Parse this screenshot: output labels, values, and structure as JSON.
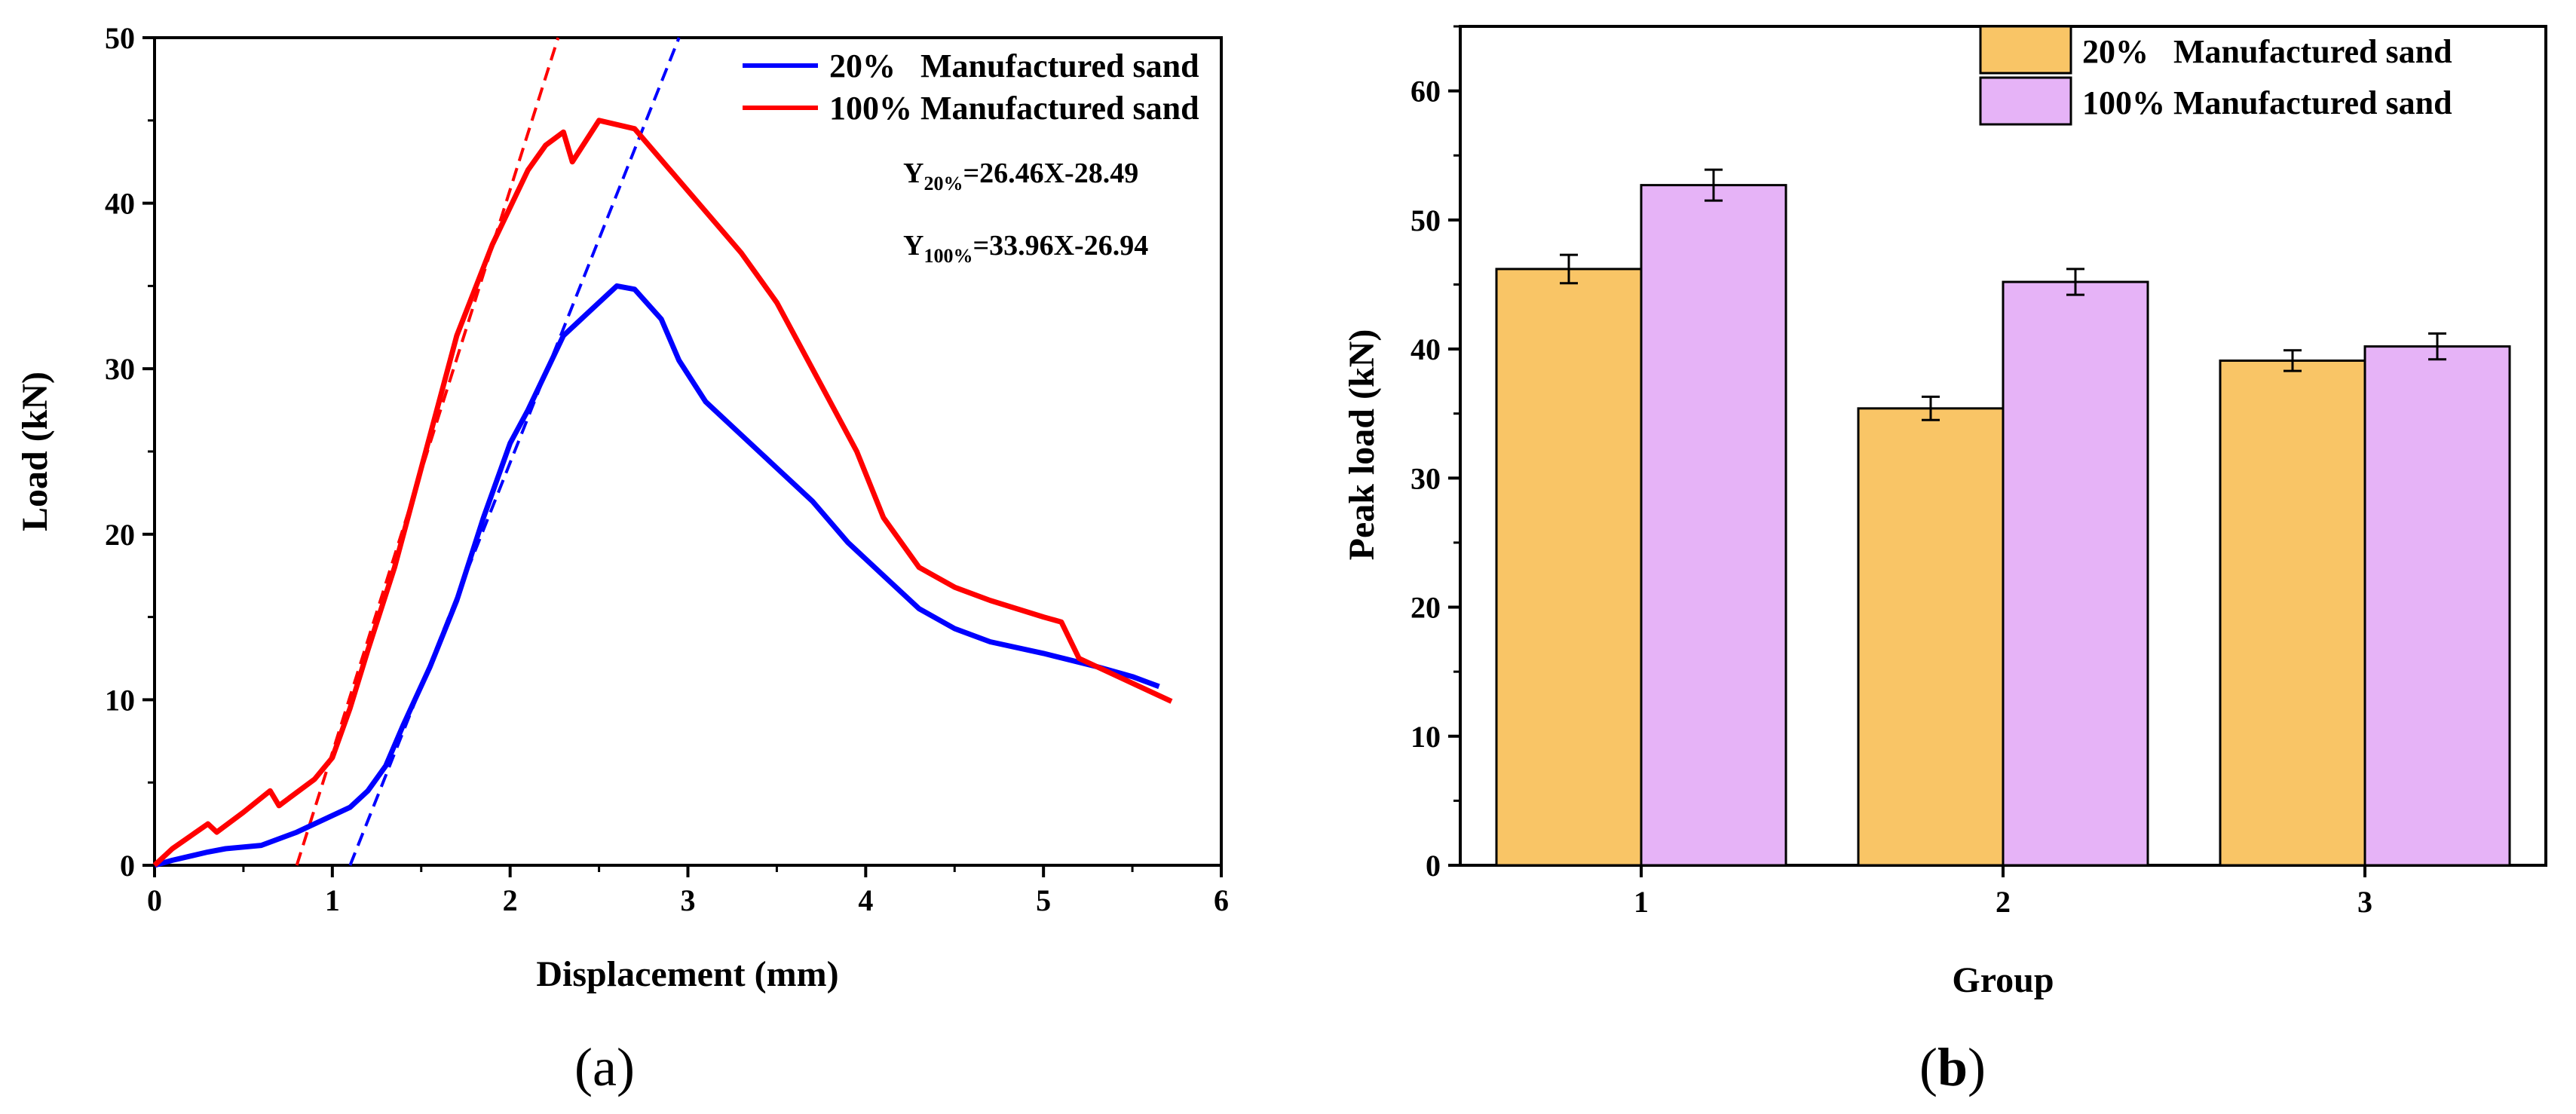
{
  "colors": {
    "blue": "#0000ff",
    "red": "#ff0000",
    "bar20": "#f9c566",
    "bar100": "#e6b3f7"
  },
  "panel_labels": {
    "a": "a",
    "b": "b"
  },
  "chart_data": [
    {
      "id": "a",
      "type": "line",
      "xlabel": "Displacement (mm)",
      "ylabel": "Load (kN)",
      "xlim": [
        0,
        6
      ],
      "ylim": [
        0,
        50
      ],
      "xticks": [
        "0",
        "1",
        "2",
        "3",
        "4",
        "5",
        "6"
      ],
      "yticks": [
        "0",
        "10",
        "20",
        "30",
        "40",
        "50"
      ],
      "legend": [
        "20%   Manufactured sand",
        "100% Manufactured sand"
      ],
      "equations": [
        {
          "base": "Y",
          "sub": "20%",
          "rest": "=26.46X-28.49"
        },
        {
          "base": "Y",
          "sub": "100%",
          "rest": "=33.96X-26.94"
        }
      ],
      "series": [
        {
          "name": "20%   Manufactured sand",
          "color": "#0000ff",
          "x": [
            0,
            0.1,
            0.3,
            0.4,
            0.6,
            0.8,
            1.0,
            1.1,
            1.2,
            1.3,
            1.4,
            1.55,
            1.7,
            1.85,
            2.0,
            2.1,
            2.3,
            2.45,
            2.6,
            2.7,
            2.85,
            2.95,
            3.1,
            3.3,
            3.5,
            3.7,
            3.9,
            4.1,
            4.3,
            4.5,
            4.7,
            5.0,
            5.3,
            5.5,
            5.65
          ],
          "y": [
            0,
            0.3,
            0.8,
            1.0,
            1.2,
            2.0,
            3.0,
            3.5,
            4.5,
            6.0,
            8.5,
            12.0,
            16.0,
            21.0,
            25.5,
            27.5,
            32.0,
            33.5,
            35.0,
            34.8,
            33.0,
            30.5,
            28.0,
            26.0,
            24.0,
            22.0,
            19.5,
            17.5,
            15.5,
            14.3,
            13.5,
            12.8,
            12.0,
            11.4,
            10.8
          ]
        },
        {
          "name": "100% Manufactured sand",
          "color": "#ff0000",
          "x": [
            0,
            0.1,
            0.3,
            0.35,
            0.5,
            0.65,
            0.7,
            0.9,
            1.0,
            1.1,
            1.2,
            1.35,
            1.5,
            1.7,
            1.9,
            2.1,
            2.2,
            2.3,
            2.35,
            2.5,
            2.7,
            2.9,
            3.1,
            3.3,
            3.5,
            3.7,
            3.8,
            3.95,
            4.1,
            4.3,
            4.5,
            4.7,
            5.0,
            5.1,
            5.2,
            5.4,
            5.6,
            5.72
          ],
          "y": [
            0,
            1.0,
            2.5,
            2.0,
            3.2,
            4.5,
            3.6,
            5.2,
            6.5,
            9.5,
            13.0,
            18.0,
            24.0,
            32.0,
            37.5,
            42.0,
            43.5,
            44.3,
            42.5,
            45.0,
            44.5,
            42.0,
            39.5,
            37.0,
            34.0,
            30.0,
            28.0,
            25.0,
            21.0,
            18.0,
            16.8,
            16.0,
            15.0,
            14.7,
            12.5,
            11.5,
            10.5,
            9.9
          ]
        }
      ],
      "fit_lines": [
        {
          "color": "#0000ff",
          "x": [
            1.1,
            2.95
          ],
          "y": [
            0.0,
            50.0
          ]
        },
        {
          "color": "#ff0000",
          "x": [
            0.8,
            2.27
          ],
          "y": [
            0.0,
            50.0
          ]
        }
      ]
    },
    {
      "id": "b",
      "type": "bar",
      "xlabel": "Group",
      "ylabel": "Peak load (kN)",
      "ylim": [
        0,
        65
      ],
      "yticks": [
        "0",
        "10",
        "20",
        "30",
        "40",
        "50",
        "60"
      ],
      "categories": [
        "1",
        "2",
        "3"
      ],
      "series": [
        {
          "name": "20%   Manufactured sand",
          "color": "#f9c566",
          "values": [
            46.2,
            35.4,
            39.1
          ],
          "errors": [
            1.1,
            0.9,
            0.8
          ]
        },
        {
          "name": "100% Manufactured sand",
          "color": "#e6b3f7",
          "values": [
            52.7,
            45.2,
            40.2
          ],
          "errors": [
            1.2,
            1.0,
            1.0
          ]
        }
      ]
    }
  ]
}
